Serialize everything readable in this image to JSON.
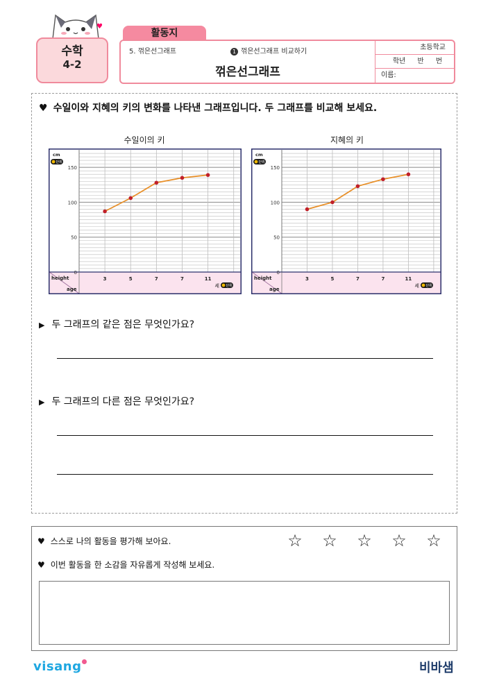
{
  "header": {
    "tab_label": "활동지",
    "subject": "수학",
    "grade": "4-2",
    "unit": "5. 꺾은선그래프",
    "lesson_num": "1",
    "lesson": "꺾은선그래프 비교하기",
    "title": "꺾은선그래프",
    "school_label": "초등학교",
    "class_label": "학년 반 번",
    "name_label": "이름:"
  },
  "main": {
    "heart": "♥",
    "question": "수일이와 지혜의 키의 변화를 나타낸 그래프입니다. 두 그래프를 비교해 보세요.",
    "sub_q1": "두 그래프의 같은 점은 무엇인가요?",
    "sub_q2": "두 그래프의 다른 점은 무엇인가요?",
    "tri": "▶"
  },
  "chart_data": [
    {
      "type": "line",
      "title": "수일이의 키",
      "unit_y": "cm",
      "unit_badge": "단위",
      "unit_x": "세",
      "row_label_top": "height",
      "row_label_bottom": "age",
      "x": [
        "3",
        "5",
        "7",
        "7",
        "11"
      ],
      "values": [
        87,
        106,
        128,
        135,
        139
      ],
      "y_ticks": [
        "150",
        "100",
        "50",
        "0"
      ],
      "ylim": [
        0,
        175
      ]
    },
    {
      "type": "line",
      "title": "지혜의 키",
      "unit_y": "cm",
      "unit_badge": "단위",
      "unit_x": "세",
      "row_label_top": "height",
      "row_label_bottom": "age",
      "x": [
        "3",
        "5",
        "7",
        "7",
        "11"
      ],
      "values": [
        90,
        100,
        123,
        133,
        140
      ],
      "y_ticks": [
        "150",
        "100",
        "50",
        "0"
      ],
      "ylim": [
        0,
        175
      ]
    }
  ],
  "eval": {
    "heart": "♥",
    "self_eval": "스스로 나의 활동을 평가해 보아요.",
    "stars": [
      "☆",
      "☆",
      "☆",
      "☆",
      "☆"
    ],
    "impression": "이번 활동을 한 소감을 자유롭게 작성해 보세요."
  },
  "footer": {
    "left_logo": "visang",
    "right_logo": "비바샘"
  },
  "colors": {
    "pink": "#f08a9c",
    "line": "#e8902a",
    "point": "#c0202a",
    "chart_border": "#2b2f6b",
    "bottom_band": "#fbe3ee"
  }
}
